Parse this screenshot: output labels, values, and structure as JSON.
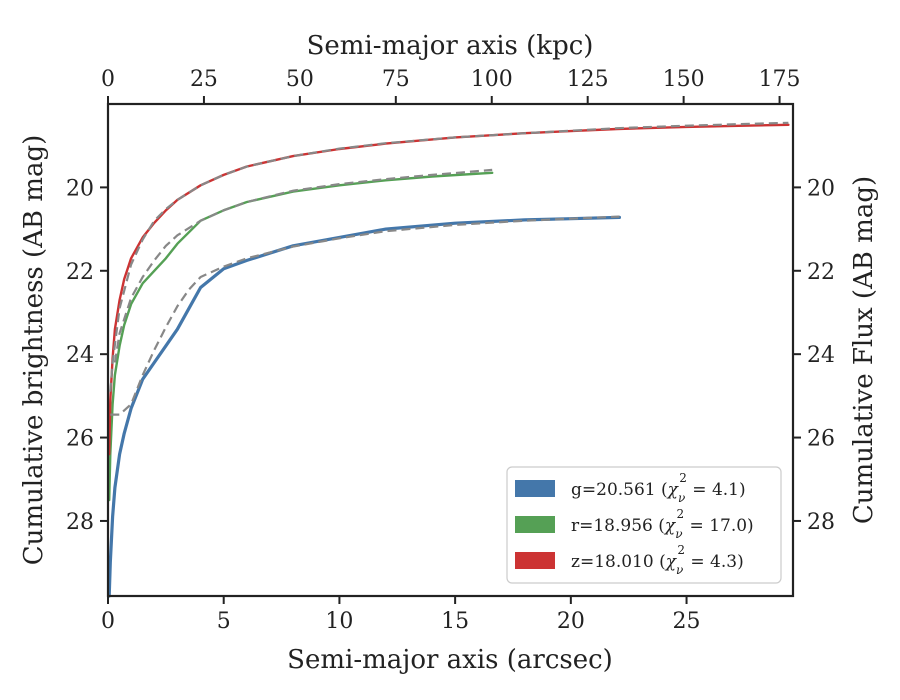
{
  "chart_data": {
    "type": "line",
    "xlabel": "Semi-major axis (arcsec)",
    "ylabel": "Cumulative brightness (AB mag)",
    "top_xlabel": "Semi-major axis (kpc)",
    "right_ylabel": "Cumulative Flux (AB mag)",
    "xlim": [
      0,
      29.6
    ],
    "ylim": [
      29.8,
      18.0
    ],
    "y_inverted": true,
    "top_xlim": [
      0,
      178.5
    ],
    "x_ticks": [
      0,
      5,
      10,
      15,
      20,
      25
    ],
    "x_tick_labels": [
      "0",
      "5",
      "10",
      "15",
      "20",
      "25"
    ],
    "y_ticks": [
      20,
      22,
      24,
      26,
      28
    ],
    "y_tick_labels": [
      "20",
      "22",
      "24",
      "26",
      "28"
    ],
    "top_ticks": [
      0,
      25,
      50,
      75,
      100,
      125,
      150,
      175
    ],
    "top_tick_labels": [
      "0",
      "25",
      "50",
      "75",
      "100",
      "125",
      "150",
      "175"
    ],
    "grid": false,
    "legend_position": "lower-right",
    "series": [
      {
        "name": "g=20.561",
        "chi2": "4.1",
        "color": "#4477aa",
        "x": [
          0.05,
          0.1,
          0.2,
          0.3,
          0.5,
          0.7,
          1.0,
          1.5,
          2.0,
          2.5,
          3.0,
          3.5,
          4.0,
          5.0,
          6.0,
          8.0,
          10.0,
          12.0,
          15.0,
          18.0,
          20.0,
          22.1
        ],
        "y": [
          29.8,
          29.0,
          27.9,
          27.2,
          26.4,
          25.9,
          25.3,
          24.6,
          24.2,
          23.8,
          23.4,
          22.9,
          22.4,
          21.95,
          21.75,
          21.4,
          21.2,
          21.0,
          20.86,
          20.78,
          20.75,
          20.72
        ]
      },
      {
        "name": "r=18.956",
        "chi2": "17.0",
        "color": "#55a055",
        "x": [
          0.05,
          0.1,
          0.2,
          0.3,
          0.5,
          0.7,
          1.0,
          1.5,
          2.0,
          2.5,
          3.0,
          4.0,
          5.0,
          6.0,
          8.0,
          10.0,
          12.0,
          14.0,
          16.6
        ],
        "y": [
          27.5,
          26.4,
          25.2,
          24.5,
          23.8,
          23.3,
          22.8,
          22.3,
          22.0,
          21.7,
          21.35,
          20.8,
          20.55,
          20.35,
          20.1,
          19.95,
          19.83,
          19.74,
          19.65
        ]
      },
      {
        "name": "z=18.010",
        "chi2": "4.3",
        "color": "#cc3333",
        "x": [
          0.05,
          0.1,
          0.2,
          0.3,
          0.5,
          0.7,
          1.0,
          1.5,
          2.0,
          2.5,
          3.0,
          4.0,
          5.0,
          6.0,
          8.0,
          10.0,
          12.0,
          15.0,
          18.0,
          20.0,
          22.0,
          25.0,
          27.5,
          29.4
        ],
        "y": [
          26.4,
          25.1,
          24.1,
          23.4,
          22.7,
          22.2,
          21.7,
          21.2,
          20.85,
          20.55,
          20.3,
          19.95,
          19.7,
          19.5,
          19.25,
          19.08,
          18.95,
          18.8,
          18.7,
          18.65,
          18.6,
          18.55,
          18.52,
          18.5
        ]
      }
    ],
    "fits": [
      {
        "x": [
          0.1,
          0.2,
          0.5,
          1.0,
          1.5,
          2.0,
          2.5,
          3.0,
          3.5,
          4.0,
          5.0,
          6.0,
          8.0,
          10.0,
          12.0,
          15.0,
          18.0,
          20.0,
          22.1
        ],
        "y": [
          25.45,
          25.45,
          25.45,
          25.2,
          24.5,
          23.9,
          23.35,
          22.85,
          22.45,
          22.15,
          21.9,
          21.7,
          21.42,
          21.22,
          21.05,
          20.9,
          20.8,
          20.75,
          20.7
        ]
      },
      {
        "x": [
          0.3,
          0.5,
          1.0,
          1.5,
          2.0,
          2.5,
          3.0,
          4.0,
          5.0,
          6.0,
          8.0,
          10.0,
          12.0,
          14.0,
          16.6
        ],
        "y": [
          24.2,
          23.5,
          22.65,
          22.15,
          21.75,
          21.4,
          21.15,
          20.8,
          20.55,
          20.35,
          20.08,
          19.92,
          19.8,
          19.7,
          19.58
        ]
      },
      {
        "x": [
          0.1,
          0.2,
          0.5,
          1.0,
          1.5,
          2.0,
          2.5,
          3.0,
          4.0,
          5.0,
          6.0,
          8.0,
          10.0,
          12.0,
          15.0,
          18.0,
          20.0,
          22.0,
          25.0,
          27.5,
          29.4
        ],
        "y": [
          24.9,
          24.2,
          22.9,
          21.85,
          21.25,
          20.8,
          20.52,
          20.3,
          19.95,
          19.7,
          19.5,
          19.25,
          19.07,
          18.94,
          18.8,
          18.7,
          18.64,
          18.58,
          18.52,
          18.48,
          18.45
        ]
      }
    ]
  },
  "styles": {
    "axis_color": "#222222",
    "fit_color": "#888888",
    "legend_border": "#cccccc"
  }
}
